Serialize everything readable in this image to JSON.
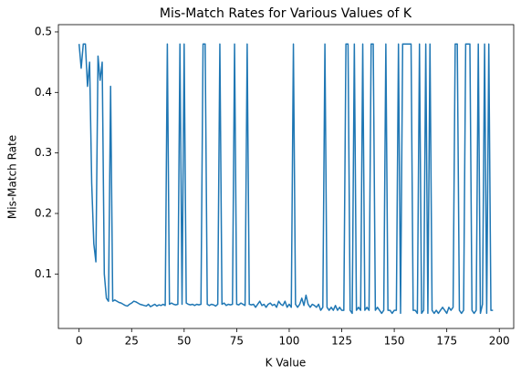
{
  "chart_data": {
    "type": "line",
    "title": "Mis-Match Rates for Various Values of K",
    "xlabel": "K Value",
    "ylabel": "Mis-Match Rate",
    "x": [
      0,
      1,
      2,
      3,
      4,
      5,
      6,
      7,
      8,
      9,
      10,
      11,
      12,
      13,
      14,
      15,
      16,
      17,
      18,
      19,
      20,
      21,
      22,
      23,
      24,
      25,
      26,
      27,
      28,
      29,
      30,
      31,
      32,
      33,
      34,
      35,
      36,
      37,
      38,
      39,
      40,
      41,
      42,
      43,
      44,
      45,
      46,
      47,
      48,
      49,
      50,
      51,
      52,
      53,
      54,
      55,
      56,
      57,
      58,
      59,
      60,
      61,
      62,
      63,
      64,
      65,
      66,
      67,
      68,
      69,
      70,
      71,
      72,
      73,
      74,
      75,
      76,
      77,
      78,
      79,
      80,
      81,
      82,
      83,
      84,
      85,
      86,
      87,
      88,
      89,
      90,
      91,
      92,
      93,
      94,
      95,
      96,
      97,
      98,
      99,
      100,
      101,
      102,
      103,
      104,
      105,
      106,
      107,
      108,
      109,
      110,
      111,
      112,
      113,
      114,
      115,
      116,
      117,
      118,
      119,
      120,
      121,
      122,
      123,
      124,
      125,
      126,
      127,
      128,
      129,
      130,
      131,
      132,
      133,
      134,
      135,
      136,
      137,
      138,
      139,
      140,
      141,
      142,
      143,
      144,
      145,
      146,
      147,
      148,
      149,
      150,
      151,
      152,
      153,
      154,
      155,
      156,
      157,
      158,
      159,
      160,
      161,
      162,
      163,
      164,
      165,
      166,
      167,
      168,
      169,
      170,
      171,
      172,
      173,
      174,
      175,
      176,
      177,
      178,
      179,
      180,
      181,
      182,
      183,
      184,
      185,
      186,
      187,
      188,
      189,
      190,
      191,
      192,
      193,
      194,
      195,
      196,
      197
    ],
    "series": [
      {
        "name": "Mis-Match Rate",
        "color": "#1f77b4",
        "values": [
          0.48,
          0.44,
          0.48,
          0.48,
          0.41,
          0.45,
          0.25,
          0.15,
          0.12,
          0.46,
          0.42,
          0.45,
          0.1,
          0.06,
          0.055,
          0.41,
          0.055,
          0.057,
          0.055,
          0.053,
          0.052,
          0.05,
          0.048,
          0.047,
          0.05,
          0.052,
          0.055,
          0.054,
          0.052,
          0.05,
          0.049,
          0.048,
          0.047,
          0.05,
          0.046,
          0.048,
          0.05,
          0.047,
          0.049,
          0.048,
          0.05,
          0.048,
          0.48,
          0.05,
          0.052,
          0.05,
          0.049,
          0.05,
          0.48,
          0.05,
          0.48,
          0.052,
          0.05,
          0.049,
          0.05,
          0.048,
          0.05,
          0.049,
          0.05,
          0.48,
          0.48,
          0.05,
          0.048,
          0.05,
          0.049,
          0.047,
          0.05,
          0.48,
          0.05,
          0.052,
          0.048,
          0.05,
          0.049,
          0.05,
          0.48,
          0.05,
          0.049,
          0.052,
          0.05,
          0.048,
          0.48,
          0.05,
          0.049,
          0.05,
          0.045,
          0.05,
          0.055,
          0.048,
          0.05,
          0.045,
          0.05,
          0.052,
          0.048,
          0.05,
          0.045,
          0.055,
          0.05,
          0.048,
          0.055,
          0.045,
          0.05,
          0.045,
          0.48,
          0.05,
          0.045,
          0.05,
          0.06,
          0.048,
          0.065,
          0.05,
          0.045,
          0.05,
          0.048,
          0.045,
          0.05,
          0.04,
          0.045,
          0.48,
          0.045,
          0.04,
          0.045,
          0.04,
          0.048,
          0.04,
          0.045,
          0.04,
          0.04,
          0.48,
          0.48,
          0.04,
          0.035,
          0.48,
          0.04,
          0.045,
          0.04,
          0.48,
          0.04,
          0.045,
          0.04,
          0.48,
          0.48,
          0.04,
          0.045,
          0.04,
          0.035,
          0.04,
          0.48,
          0.04,
          0.04,
          0.035,
          0.04,
          0.04,
          0.48,
          0.035,
          0.48,
          0.48,
          0.48,
          0.48,
          0.48,
          0.04,
          0.04,
          0.035,
          0.48,
          0.035,
          0.04,
          0.48,
          0.035,
          0.48,
          0.04,
          0.035,
          0.04,
          0.035,
          0.04,
          0.045,
          0.04,
          0.035,
          0.045,
          0.04,
          0.045,
          0.48,
          0.48,
          0.04,
          0.035,
          0.04,
          0.48,
          0.48,
          0.48,
          0.04,
          0.035,
          0.04,
          0.48,
          0.035,
          0.05,
          0.48,
          0.035,
          0.48,
          0.04,
          0.04
        ]
      }
    ],
    "xlim": [
      -9.85,
      206.85
    ],
    "xticks": [
      0,
      25,
      50,
      75,
      100,
      125,
      150,
      175,
      200
    ],
    "ylim": [
      0.01,
      0.512
    ],
    "yticks": [
      0.1,
      0.2,
      0.3,
      0.4,
      0.5
    ],
    "grid": false
  }
}
